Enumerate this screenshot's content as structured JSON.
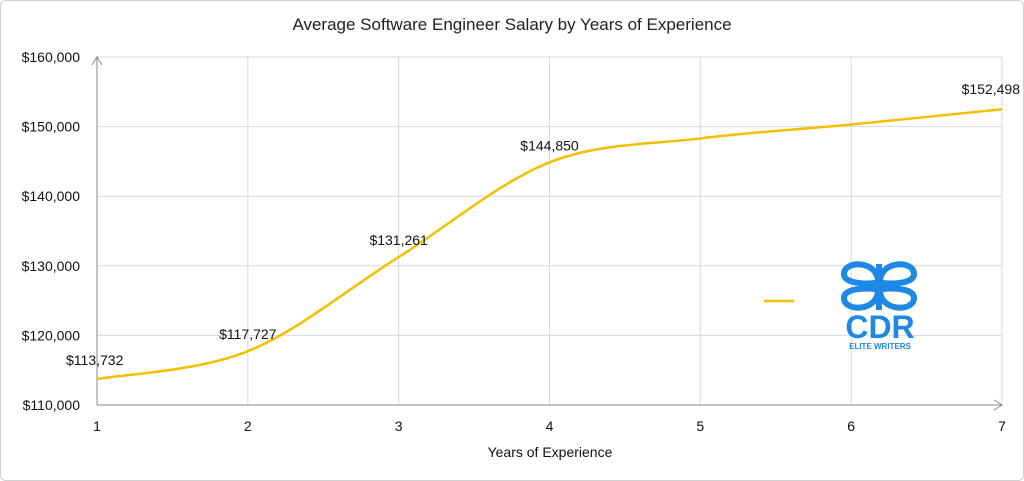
{
  "chart_data": {
    "type": "line",
    "title": "Average Software Engineer Salary by Years of Experience",
    "xlabel": "Years of Experience",
    "ylabel": "",
    "x": [
      1,
      2,
      3,
      4,
      5,
      6,
      7
    ],
    "xlim": [
      1,
      7
    ],
    "ylim": [
      110000,
      160000
    ],
    "y_ticks": [
      110000,
      120000,
      130000,
      140000,
      150000,
      160000
    ],
    "y_tick_labels": [
      "$110,000",
      "$120,000",
      "$130,000",
      "$140,000",
      "$150,000",
      "$160,000"
    ],
    "grid": true,
    "smooth": true,
    "series": [
      {
        "color": "#F5BF00",
        "values": [
          113732,
          117727,
          131261,
          144850,
          148300,
          150300,
          152498
        ],
        "data_labels": {
          "1": "$113,732",
          "2": "$117,727",
          "3": "$131,261",
          "4": "$144,850",
          "7": "$152,498"
        }
      }
    ],
    "legend": {
      "position": "right",
      "marker_color": "#F5BF00"
    }
  },
  "watermark": {
    "text": "CDR",
    "subtext": "ELITE WRITERS",
    "color": "#1E88E5"
  }
}
